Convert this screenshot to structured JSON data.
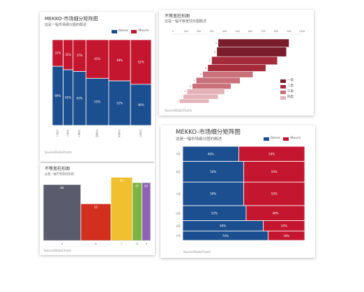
{
  "chart_data": [
    {
      "type": "bar",
      "variant": "marimekko",
      "orientation": "vertical",
      "title": "MEKKO-市场细分矩阵图",
      "subtitle": "这是一幅市场细分图的概述",
      "legend_position": "top-right",
      "categories": [
        "分类一",
        "分类二",
        "分类三",
        "分类四",
        "分类五",
        "分类六"
      ],
      "column_widths": [
        11,
        10,
        13,
        23,
        22,
        21
      ],
      "series": [
        {
          "name": "Donec",
          "color": "#1c4f8f",
          "values": [
            69,
            65,
            63,
            55,
            52,
            48
          ],
          "labels": [
            "69%",
            "65%",
            "63%",
            "55%",
            "52%",
            "48%"
          ]
        },
        {
          "name": "Mauris",
          "color": "#c4162f",
          "values": [
            31,
            35,
            37,
            45,
            48,
            52
          ],
          "labels": [
            "31%",
            "35%",
            "37%",
            "45%",
            "48%",
            "52%"
          ]
        }
      ],
      "ylim": [
        0,
        100
      ],
      "source": "Source/Data/Charts"
    },
    {
      "type": "bar",
      "variant": "variable-width",
      "orientation": "horizontal",
      "title": "不等宽柱形图",
      "subtitle": "这是一幅不等宽柱形图概述",
      "x_ticks": [
        0,
        100,
        200,
        300,
        400,
        500,
        600,
        700,
        800,
        900,
        1000
      ],
      "xlim": [
        0,
        1000
      ],
      "categories": [
        "A",
        "B",
        "C",
        "D",
        "E",
        "F",
        "G",
        "H",
        "I",
        "J"
      ],
      "bar_widths": [
        12,
        14,
        12,
        10,
        9,
        9,
        8,
        8,
        7,
        6
      ],
      "starts": [
        350,
        340,
        300,
        270,
        230,
        180,
        150,
        110,
        80,
        50
      ],
      "ends": [
        900,
        880,
        810,
        720,
        620,
        520,
        450,
        400,
        350,
        280
      ],
      "groups": [
        0,
        0,
        1,
        1,
        2,
        2,
        2,
        3,
        3,
        3
      ],
      "series": [
        {
          "name": "一类",
          "color": "#7a1c2b"
        },
        {
          "name": "二类",
          "color": "#a52a3b"
        },
        {
          "name": "三类",
          "color": "#c9707a"
        },
        {
          "name": "四类",
          "color": "#e4b3b9"
        }
      ],
      "legend_position": "right",
      "source": "Source/Data/Charts"
    },
    {
      "type": "bar",
      "variant": "variable-width",
      "orientation": "vertical",
      "title": "不等宽柱形图",
      "subtitle": "这是一幅不等宽柱形图",
      "categories": [
        "A",
        "B",
        "C",
        "D",
        "E"
      ],
      "values": [
        84,
        55,
        95,
        87,
        87
      ],
      "bar_widths": [
        35,
        28,
        20,
        9,
        8
      ],
      "colors": [
        "#5a5b6c",
        "#d22f1f",
        "#f0c030",
        "#7db343",
        "#8f62b6"
      ],
      "ylim": [
        0,
        100
      ],
      "source": "Source/Data/Charts"
    },
    {
      "type": "bar",
      "variant": "marimekko",
      "orientation": "horizontal",
      "title": "MEKKO-市场细分矩阵图",
      "subtitle": "这是一幅市场细分图的概述",
      "legend_position": "top-right",
      "categories": [
        "A区",
        "B区",
        "C区",
        "D区",
        "E区",
        "F区"
      ],
      "row_heights": [
        16,
        22,
        25,
        16,
        11,
        10
      ],
      "series": [
        {
          "name": "Donec",
          "color": "#1c4f8f",
          "values": [
            46,
            50,
            50,
            52,
            66,
            70
          ],
          "labels": [
            "46%",
            "50%",
            "50%",
            "52%",
            "66%",
            "70%"
          ]
        },
        {
          "name": "Mauris",
          "color": "#c4162f",
          "values": [
            54,
            50,
            50,
            48,
            34,
            30
          ],
          "labels": [
            "54%",
            "50%",
            "50%",
            "48%",
            "34%",
            "30%"
          ]
        }
      ],
      "xlim": [
        0,
        100
      ],
      "source": "Source/Data/Charts"
    }
  ]
}
